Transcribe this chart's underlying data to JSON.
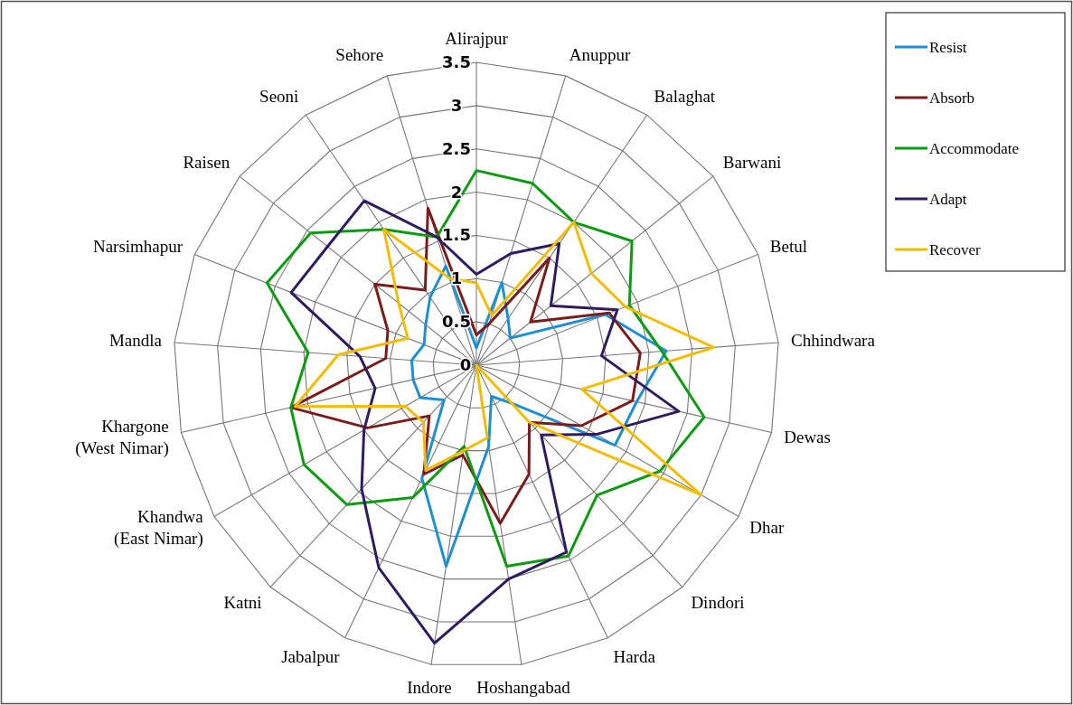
{
  "chart_data": {
    "type": "radar",
    "categories": [
      "Alirajpur",
      "Anuppur",
      "Balaghat",
      "Barwani",
      "Betul",
      "Chhindwara",
      "Dewas",
      "Dhar",
      "Dindori",
      "Harda",
      "Hoshangabad",
      "Indore",
      "Jabalpur",
      "Katni",
      "Khandwa\n(East Nimar)",
      "Khargone\n(West Nimar)",
      "Mandla",
      "Narsimhapur",
      "Raisen",
      "Seoni",
      "Sehore"
    ],
    "series": [
      {
        "name": "Resist",
        "color": "#1e8fd0",
        "values": [
          0.2,
          1.0,
          0.65,
          0.5,
          1.6,
          2.2,
          1.9,
          1.85,
          0.6,
          0.4,
          0.95,
          2.35,
          1.45,
          0.55,
          0.75,
          0.75,
          0.75,
          0.65,
          0.75,
          0.95,
          1.2
        ]
      },
      {
        "name": "Absorb",
        "color": "#7b1c1c",
        "values": [
          0.35,
          0.5,
          1.5,
          0.8,
          1.65,
          1.9,
          1.85,
          1.4,
          0.9,
          1.4,
          1.85,
          1.05,
          1.4,
          0.8,
          1.45,
          2.2,
          1.05,
          1.1,
          1.5,
          1.05,
          1.9
        ]
      },
      {
        "name": "Accommodate",
        "color": "#0e9a12",
        "values": [
          2.25,
          2.2,
          2.0,
          2.3,
          1.9,
          2.15,
          2.7,
          2.45,
          2.05,
          2.45,
          2.35,
          0.95,
          1.7,
          2.2,
          2.3,
          2.2,
          1.95,
          2.6,
          2.45,
          1.9,
          1.55
        ]
      },
      {
        "name": "Adapt",
        "color": "#2f1b5e",
        "values": [
          1.05,
          1.35,
          1.7,
          1.1,
          1.75,
          1.45,
          2.4,
          1.6,
          1.1,
          2.4,
          2.5,
          3.25,
          2.6,
          1.95,
          1.5,
          1.2,
          1.35,
          2.3,
          2.2,
          2.3,
          1.55
        ]
      },
      {
        "name": "Recover",
        "color": "#f2bc00",
        "values": [
          0.95,
          0.6,
          2.0,
          1.7,
          1.85,
          2.75,
          1.25,
          3.0,
          0.9,
          0,
          0.85,
          1.0,
          1.35,
          0.9,
          0.95,
          2.15,
          1.6,
          0.85,
          1.15,
          1.9,
          1.05
        ]
      }
    ],
    "ylim": [
      0,
      3.5
    ],
    "yticks": [
      0,
      0.5,
      1,
      1.5,
      2,
      2.5,
      3,
      3.5
    ],
    "grid": true,
    "legend": "top right"
  }
}
